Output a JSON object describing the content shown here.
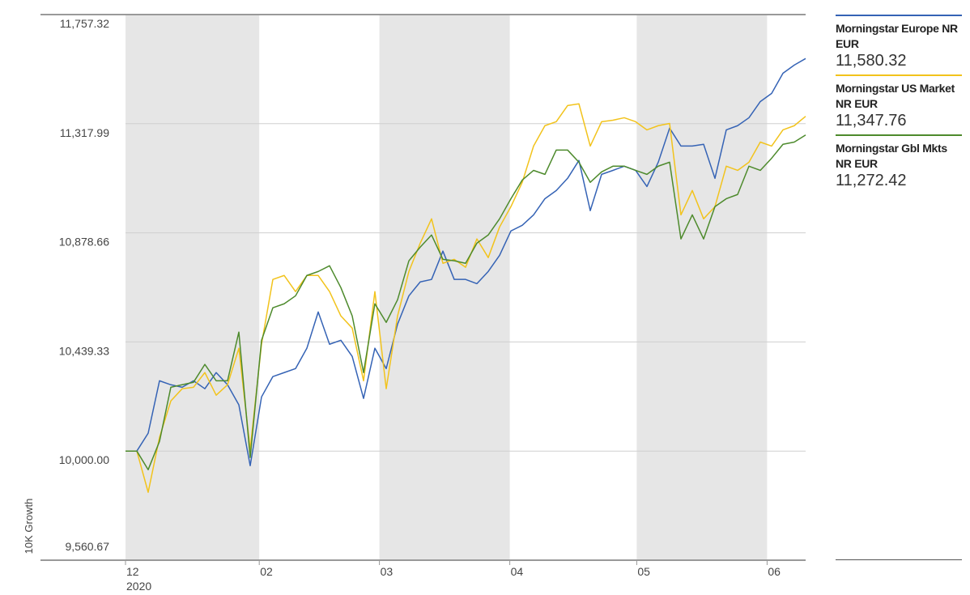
{
  "chart_data": {
    "type": "line",
    "y_axis_label": "10K Growth",
    "x": [
      0,
      1,
      2,
      3,
      4,
      5,
      6,
      7,
      8,
      9,
      10,
      11,
      12,
      13,
      14,
      15,
      16,
      17,
      18,
      19,
      20,
      21,
      22,
      23,
      24,
      25,
      26,
      27,
      28,
      29,
      30,
      31,
      32,
      33,
      34,
      35,
      36,
      37,
      38,
      39,
      40,
      41,
      42,
      43,
      44,
      45,
      46,
      47,
      48,
      49,
      50,
      51,
      52,
      53,
      54,
      55,
      56,
      57,
      58,
      59,
      60
    ],
    "xlim": [
      0,
      60
    ],
    "xticks": [
      {
        "value": 0,
        "label": "12"
      },
      {
        "value": 11.8,
        "label": "02"
      },
      {
        "value": 22.4,
        "label": "03"
      },
      {
        "value": 33.9,
        "label": "04"
      },
      {
        "value": 45.1,
        "label": "05"
      },
      {
        "value": 56.6,
        "label": "06"
      }
    ],
    "x_year_label": "2020",
    "ylim": [
      9560.67,
      11757.32
    ],
    "yticks": [
      {
        "value": 9560.67,
        "label": "9,560.67"
      },
      {
        "value": 10000,
        "label": "10,000.00"
      },
      {
        "value": 10439.33,
        "label": "10,439.33"
      },
      {
        "value": 10878.66,
        "label": "10,878.66"
      },
      {
        "value": 11317.99,
        "label": "11,317.99"
      },
      {
        "value": 11757.32,
        "label": "11,757.32"
      }
    ],
    "grid": true,
    "shade_alternate": true,
    "series": [
      {
        "name": "Morningstar Europe NR EUR",
        "color": "#3563b5",
        "legend_value": "11,580.32",
        "values": [
          10000,
          10000,
          10072,
          10283,
          10267,
          10257,
          10283,
          10251,
          10316,
          10267,
          10186,
          9941,
          10218,
          10300,
          10316,
          10332,
          10414,
          10560,
          10430,
          10446,
          10381,
          10212,
          10414,
          10332,
          10511,
          10625,
          10681,
          10691,
          10805,
          10691,
          10691,
          10674,
          10723,
          10788,
          10886,
          10909,
          10951,
          11016,
          11049,
          11098,
          11170,
          10968,
          11114,
          11130,
          11147,
          11130,
          11065,
          11163,
          11300,
          11228,
          11228,
          11235,
          11098,
          11293,
          11310,
          11342,
          11407,
          11440,
          11521,
          11554,
          11580.32
        ]
      },
      {
        "name": "Morningstar US Market NR EUR",
        "color": "#f2c31c",
        "legend_value": "11,347.76",
        "values": [
          10000,
          10000,
          9834,
          10055,
          10202,
          10251,
          10257,
          10316,
          10225,
          10267,
          10414,
          10007,
          10430,
          10691,
          10707,
          10642,
          10707,
          10707,
          10642,
          10544,
          10495,
          10283,
          10642,
          10251,
          10544,
          10723,
          10837,
          10935,
          10756,
          10772,
          10740,
          10854,
          10779,
          10902,
          10984,
          11082,
          11228,
          11310,
          11326,
          11391,
          11398,
          11228,
          11326,
          11332,
          11342,
          11326,
          11293,
          11310,
          11319,
          10951,
          11049,
          10935,
          10984,
          11147,
          11130,
          11163,
          11244,
          11228,
          11293,
          11310,
          11347.76
        ]
      },
      {
        "name": "Morningstar Gbl Mkts NR EUR",
        "color": "#4d8a2c",
        "legend_value": "11,272.42",
        "values": [
          10000,
          10000,
          9925,
          10039,
          10257,
          10267,
          10277,
          10349,
          10283,
          10283,
          10479,
          9974,
          10446,
          10577,
          10593,
          10625,
          10707,
          10723,
          10746,
          10658,
          10544,
          10316,
          10593,
          10518,
          10609,
          10766,
          10821,
          10870,
          10772,
          10766,
          10756,
          10837,
          10870,
          10935,
          11016,
          11091,
          11130,
          11114,
          11212,
          11212,
          11163,
          11082,
          11124,
          11147,
          11147,
          11130,
          11114,
          11147,
          11163,
          10854,
          10951,
          10854,
          10984,
          11016,
          11033,
          11147,
          11130,
          11179,
          11235,
          11244,
          11272.42
        ]
      }
    ]
  }
}
